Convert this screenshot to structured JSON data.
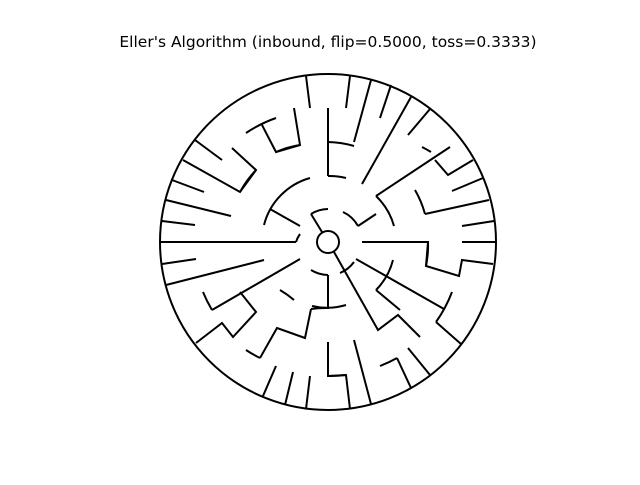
{
  "figure": {
    "title": "Eller's Algorithm (inbound, flip=0.5000, toss=0.3333)"
  },
  "maze": {
    "type": "circular-maze",
    "stroke_color": "#000000",
    "background": "#ffffff"
  }
}
